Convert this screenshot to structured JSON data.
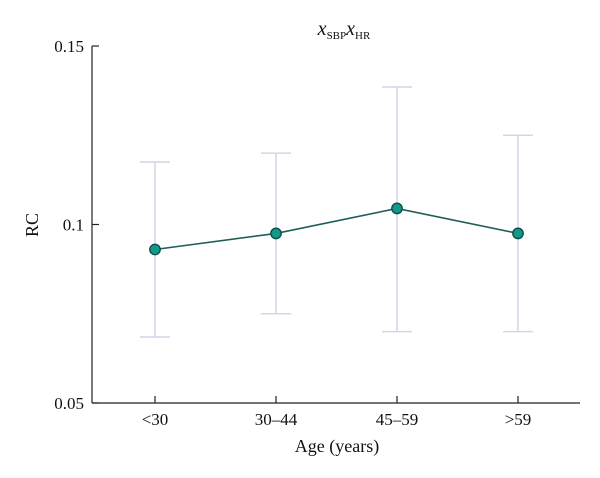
{
  "chart_data": {
    "type": "line",
    "title": {
      "main1": "x",
      "sub1": "SBP",
      "main2": "x",
      "sub2": "HR"
    },
    "xlabel": "Age (years)",
    "ylabel": "RC",
    "categories": [
      "<30",
      "30–44",
      "45–59",
      ">59"
    ],
    "ylim": [
      0.05,
      0.15
    ],
    "yticks": [
      0.05,
      0.1,
      0.15
    ],
    "ytick_labels": [
      "0.05",
      "0.1",
      "0.15"
    ],
    "grid": false,
    "series": [
      {
        "values": [
          0.093,
          0.0975,
          0.1045,
          0.0975
        ],
        "lower": [
          0.0685,
          0.075,
          0.07,
          0.07
        ],
        "upper": [
          0.1175,
          0.12,
          0.1385,
          0.125
        ]
      }
    ],
    "colors": {
      "line": "#1f5f5a",
      "marker_fill": "#119a8b",
      "marker_stroke": "#0d4f48",
      "error_bar": "#d4d4ea",
      "axis": "#222222"
    }
  }
}
